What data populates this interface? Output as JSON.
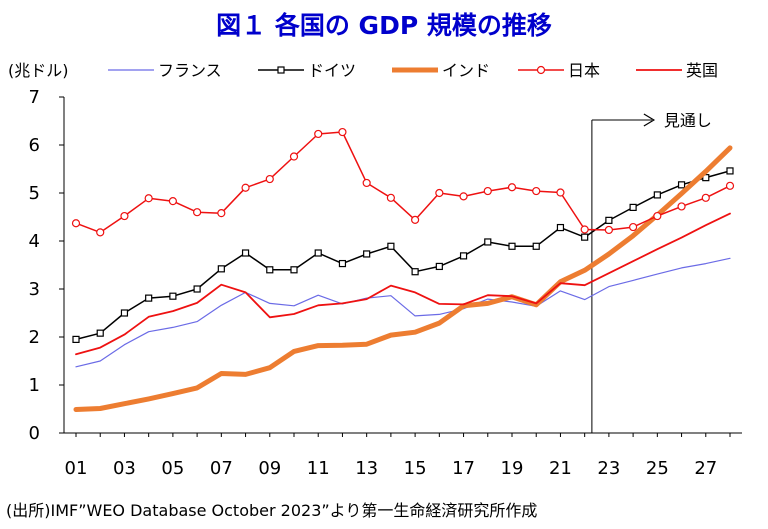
{
  "title": "図１ 各国の GDP 規模の推移",
  "source": "(出所)IMF”WEO Database October 2023”より第一生命経済研究所作成",
  "chart_data": {
    "type": "line",
    "unit_label": "(兆ドル)",
    "projection_label": "見通し",
    "projection_start_year": 2023,
    "x": [
      2001,
      2002,
      2003,
      2004,
      2005,
      2006,
      2007,
      2008,
      2009,
      2010,
      2011,
      2012,
      2013,
      2014,
      2015,
      2016,
      2017,
      2018,
      2019,
      2020,
      2021,
      2022,
      2023,
      2024,
      2025,
      2026,
      2027,
      2028
    ],
    "x_tick_labels": [
      "01",
      "03",
      "05",
      "07",
      "09",
      "11",
      "13",
      "15",
      "17",
      "19",
      "21",
      "23",
      "25",
      "27"
    ],
    "x_tick_years": [
      2001,
      2003,
      2005,
      2007,
      2009,
      2011,
      2013,
      2015,
      2017,
      2019,
      2021,
      2023,
      2025,
      2027
    ],
    "ylim": [
      0,
      7
    ],
    "y_ticks": [
      0,
      1,
      2,
      3,
      4,
      5,
      6,
      7
    ],
    "series": [
      {
        "name": "フランス",
        "color": "#6b6be6",
        "width": 1.2,
        "marker": "none",
        "values": [
          1.38,
          1.5,
          1.84,
          2.11,
          2.2,
          2.32,
          2.66,
          2.93,
          2.7,
          2.65,
          2.87,
          2.69,
          2.81,
          2.86,
          2.44,
          2.47,
          2.59,
          2.79,
          2.73,
          2.64,
          2.96,
          2.78,
          3.05,
          3.18,
          3.31,
          3.44,
          3.53,
          3.64
        ]
      },
      {
        "name": "ドイツ",
        "color": "#000000",
        "width": 1.5,
        "marker": "square",
        "values": [
          1.95,
          2.08,
          2.5,
          2.81,
          2.85,
          3.0,
          3.42,
          3.75,
          3.4,
          3.4,
          3.75,
          3.53,
          3.73,
          3.89,
          3.36,
          3.47,
          3.69,
          3.98,
          3.89,
          3.89,
          4.28,
          4.08,
          4.43,
          4.7,
          4.96,
          5.17,
          5.32,
          5.46
        ]
      },
      {
        "name": "インド",
        "color": "#ed7d31",
        "width": 5,
        "marker": "none",
        "values": [
          0.49,
          0.51,
          0.61,
          0.71,
          0.82,
          0.94,
          1.24,
          1.22,
          1.36,
          1.7,
          1.82,
          1.83,
          1.85,
          2.04,
          2.1,
          2.29,
          2.65,
          2.7,
          2.84,
          2.67,
          3.15,
          3.39,
          3.73,
          4.11,
          4.54,
          4.99,
          5.45,
          5.94
        ]
      },
      {
        "name": "日本",
        "color": "#ee1111",
        "width": 1.5,
        "marker": "circle",
        "values": [
          4.37,
          4.18,
          4.52,
          4.89,
          4.83,
          4.6,
          4.58,
          5.11,
          5.29,
          5.76,
          6.23,
          6.27,
          5.21,
          4.9,
          4.44,
          5.0,
          4.93,
          5.04,
          5.12,
          5.04,
          5.01,
          4.24,
          4.23,
          4.29,
          4.52,
          4.72,
          4.9,
          5.15
        ]
      },
      {
        "name": "英国",
        "color": "#ee1111",
        "width": 1.8,
        "marker": "none",
        "values": [
          1.64,
          1.78,
          2.05,
          2.42,
          2.54,
          2.71,
          3.09,
          2.93,
          2.41,
          2.48,
          2.66,
          2.7,
          2.79,
          3.07,
          2.93,
          2.69,
          2.68,
          2.87,
          2.85,
          2.7,
          3.12,
          3.08,
          3.33,
          3.58,
          3.83,
          4.07,
          4.33,
          4.57
        ]
      }
    ]
  }
}
